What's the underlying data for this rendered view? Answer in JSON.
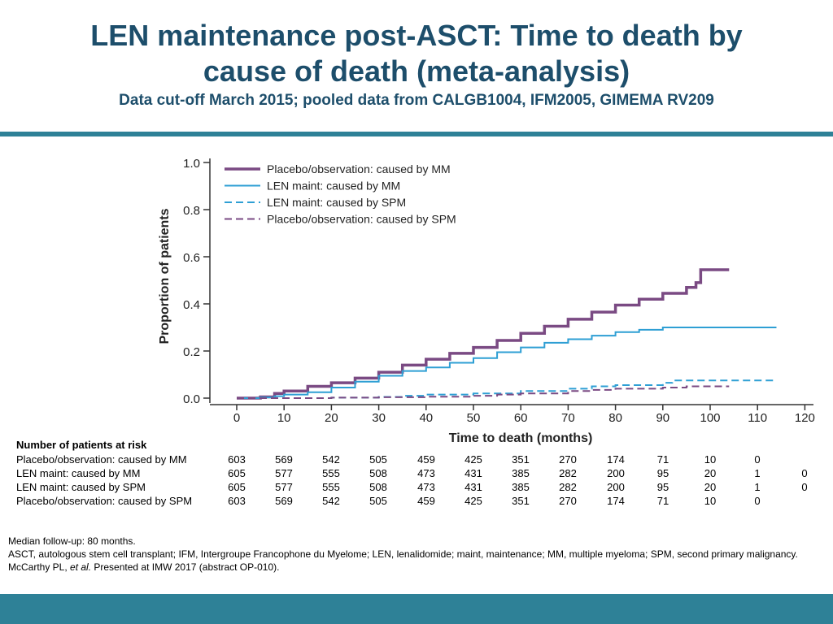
{
  "title_line1": "LEN maintenance post-ASCT: Time to death by",
  "title_line2": "cause of death (meta-analysis)",
  "subtitle": "Data cut-off March 2015; pooled data from CALGB1004, IFM2005, GIMEMA RV209",
  "colors": {
    "purple": "#7a4a83",
    "blue": "#2e9fd4",
    "accent": "#2e8197",
    "title": "#1d4e6b"
  },
  "chart_data": {
    "type": "line",
    "xlabel": "Time to death (months)",
    "ylabel": "Proportion of patients",
    "xlim": [
      0,
      120
    ],
    "ylim": [
      0,
      1.0
    ],
    "x_ticks": [
      0,
      10,
      20,
      30,
      40,
      50,
      60,
      70,
      80,
      90,
      100,
      110,
      120
    ],
    "y_ticks": [
      0.0,
      0.2,
      0.4,
      0.6,
      0.8,
      1.0
    ],
    "y_tick_labels": [
      "0.0",
      "0.2",
      "0.4",
      "0.6",
      "0.8",
      "1.0"
    ],
    "legend_position": "top-left",
    "series": [
      {
        "name": "Placebo/observation: caused by MM",
        "color": "#7a4a83",
        "dash": "solid",
        "width": 3.5,
        "x": [
          0,
          5,
          8,
          10,
          15,
          20,
          25,
          30,
          35,
          40,
          45,
          50,
          55,
          60,
          65,
          70,
          75,
          80,
          85,
          90,
          95,
          97,
          98,
          100,
          104
        ],
        "y": [
          0,
          0.005,
          0.02,
          0.03,
          0.05,
          0.065,
          0.085,
          0.11,
          0.14,
          0.165,
          0.19,
          0.215,
          0.245,
          0.275,
          0.305,
          0.335,
          0.365,
          0.395,
          0.42,
          0.445,
          0.47,
          0.49,
          0.545,
          0.545,
          0.545
        ]
      },
      {
        "name": "LEN maint: caused by MM",
        "color": "#2e9fd4",
        "dash": "solid",
        "width": 2,
        "x": [
          0,
          5,
          8,
          10,
          15,
          20,
          25,
          30,
          35,
          40,
          45,
          50,
          55,
          60,
          65,
          70,
          75,
          80,
          85,
          90,
          100,
          110,
          114
        ],
        "y": [
          0,
          0.003,
          0.008,
          0.015,
          0.025,
          0.045,
          0.07,
          0.095,
          0.115,
          0.13,
          0.15,
          0.17,
          0.195,
          0.215,
          0.235,
          0.25,
          0.265,
          0.28,
          0.29,
          0.3,
          0.3,
          0.3,
          0.3
        ]
      },
      {
        "name": "LEN maint: caused by SPM",
        "color": "#2e9fd4",
        "dash": "dash",
        "width": 2,
        "x": [
          0,
          10,
          20,
          30,
          35,
          40,
          50,
          60,
          70,
          75,
          80,
          85,
          90,
          92,
          100,
          110,
          114
        ],
        "y": [
          0,
          0,
          0.002,
          0.005,
          0.01,
          0.015,
          0.02,
          0.03,
          0.04,
          0.05,
          0.055,
          0.055,
          0.065,
          0.075,
          0.075,
          0.075,
          0.075
        ]
      },
      {
        "name": "Placebo/observation: caused by SPM",
        "color": "#7a4a83",
        "dash": "dash",
        "width": 2,
        "x": [
          0,
          10,
          20,
          30,
          40,
          50,
          55,
          60,
          70,
          75,
          80,
          90,
          95,
          100,
          104
        ],
        "y": [
          0,
          0,
          0.002,
          0.004,
          0.006,
          0.01,
          0.015,
          0.02,
          0.03,
          0.035,
          0.04,
          0.045,
          0.05,
          0.05,
          0.05
        ]
      }
    ]
  },
  "risk_table": {
    "header": "Number of patients at risk",
    "rows": [
      {
        "label": "Placebo/observation: caused by MM",
        "values": [
          "603",
          "569",
          "542",
          "505",
          "459",
          "425",
          "351",
          "270",
          "174",
          "71",
          "10",
          "0"
        ]
      },
      {
        "label": "LEN maint: caused by MM",
        "values": [
          "605",
          "577",
          "555",
          "508",
          "473",
          "431",
          "385",
          "282",
          "200",
          "95",
          "20",
          "1",
          "0"
        ]
      },
      {
        "label": "LEN maint: caused by SPM",
        "values": [
          "605",
          "577",
          "555",
          "508",
          "473",
          "431",
          "385",
          "282",
          "200",
          "95",
          "20",
          "1",
          "0"
        ]
      },
      {
        "label": "Placebo/observation: caused by SPM",
        "values": [
          "603",
          "569",
          "542",
          "505",
          "459",
          "425",
          "351",
          "270",
          "174",
          "71",
          "10",
          "0"
        ]
      }
    ]
  },
  "footer": {
    "line1": "Median follow-up: 80 months.",
    "line2": "ASCT, autologous stem cell transplant; IFM, Intergroupe Francophone du Myelome; LEN, lenalidomide; maint, maintenance; MM, multiple myeloma; SPM, second primary malignancy.",
    "line3_author": "McCarthy PL, ",
    "line3_etal": "et al.",
    "line3_rest": " Presented at IMW 2017 (abstract OP-010)."
  }
}
